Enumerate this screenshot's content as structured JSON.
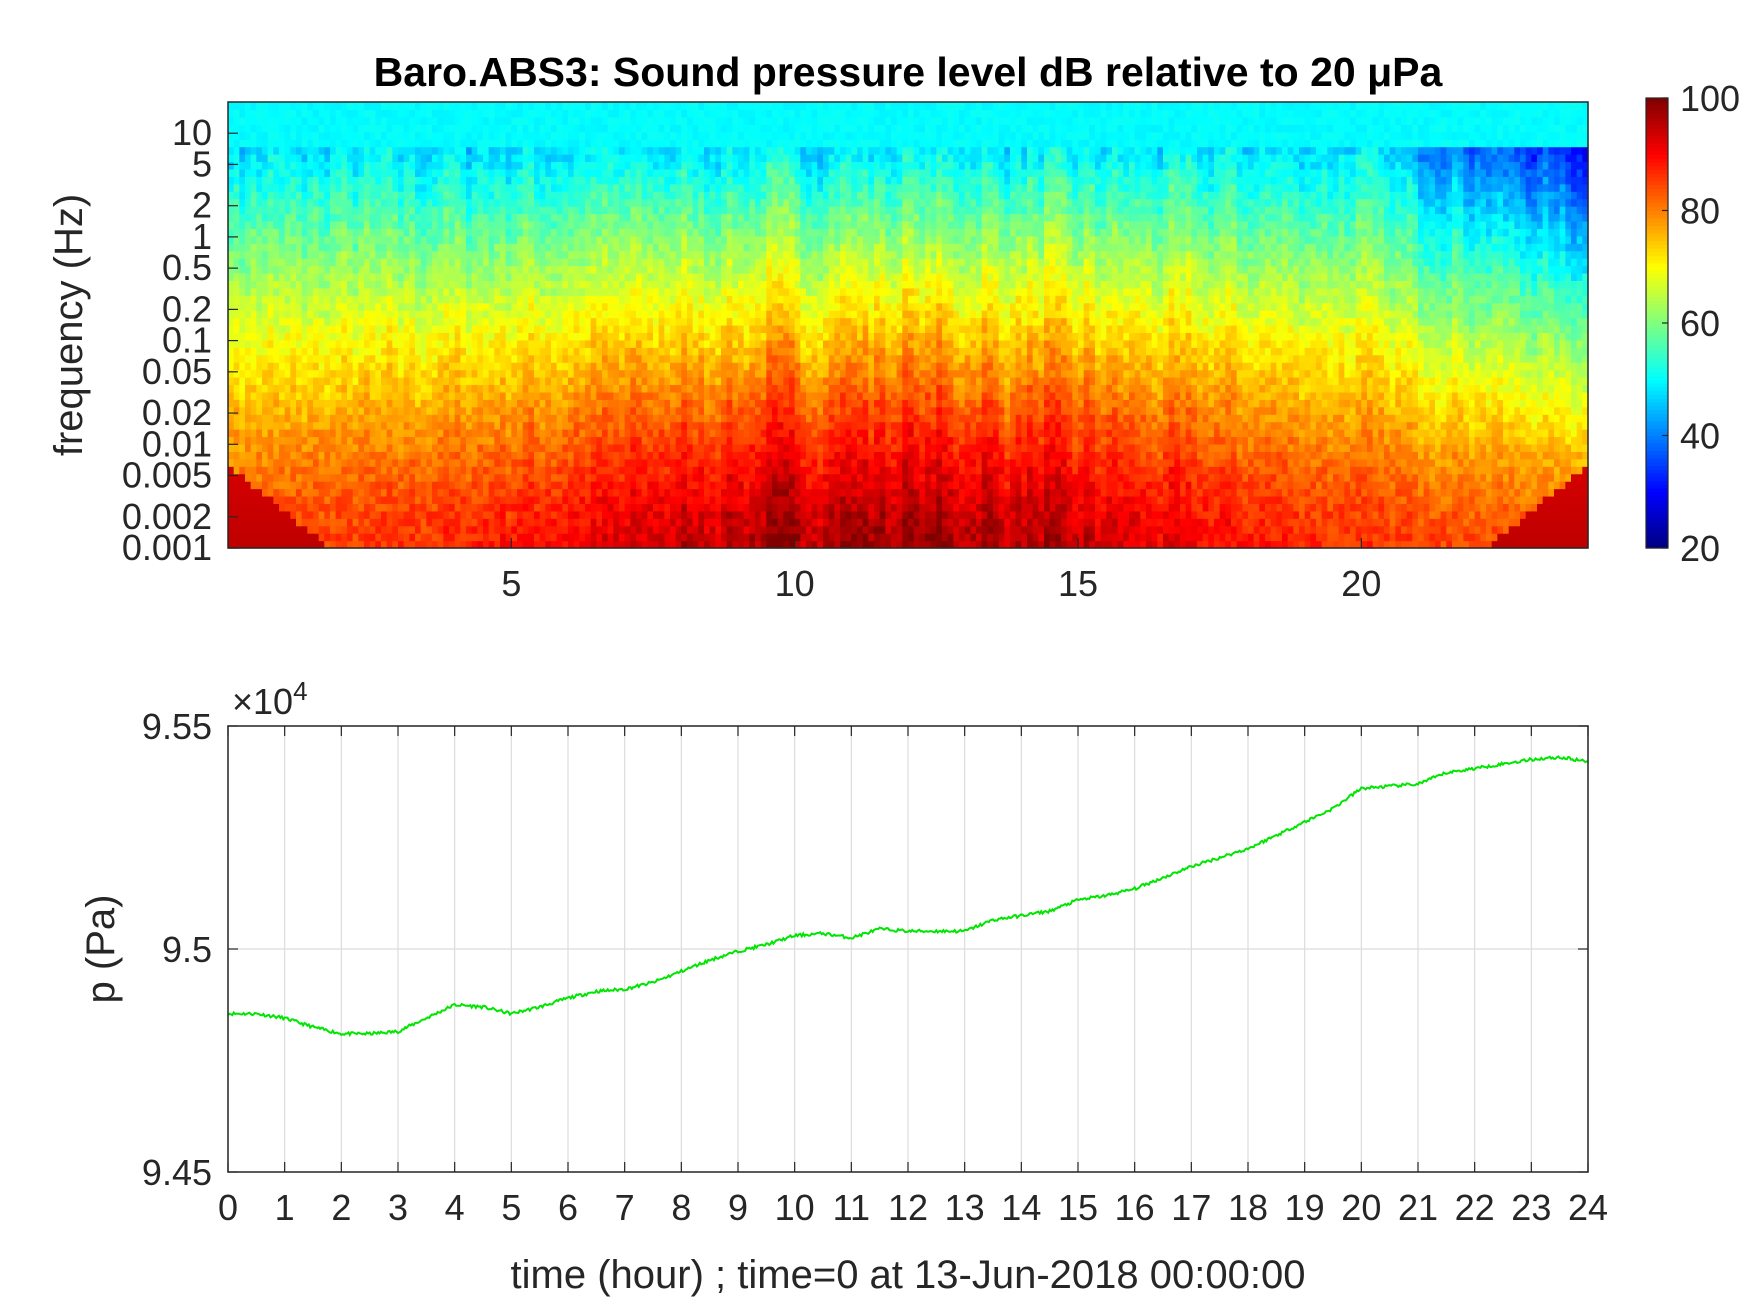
{
  "chart_data": [
    {
      "type": "heatmap",
      "title": "Baro.ABS3: Sound pressure level dB relative to 20 μPa",
      "xlabel": "",
      "ylabel": "frequency (Hz)",
      "x_range": [
        0,
        24
      ],
      "x_ticks": [
        "5",
        "10",
        "15",
        "20"
      ],
      "y_scale": "log",
      "y_range": [
        0.001,
        20
      ],
      "y_ticks": [
        "0.001",
        "0.002",
        "0.005",
        "0.01",
        "0.02",
        "0.05",
        "0.1",
        "0.2",
        "0.5",
        "1",
        "2",
        "5",
        "10"
      ],
      "colorbar": {
        "range": [
          20,
          100
        ],
        "ticks": [
          "20",
          "40",
          "60",
          "80",
          "100"
        ],
        "colormap": "jet"
      },
      "description_values": {
        "low_freq_level_db": 88,
        "high_freq_level_db": 50,
        "peak_activity_hours": [
          6,
          17
        ]
      }
    },
    {
      "type": "line",
      "title": "",
      "xlabel": "time (hour) ; time=0 at 13-Jun-2018 00:00:00",
      "ylabel": "p (Pa)",
      "y_multiplier": "×10",
      "y_multiplier_exp": "4",
      "x_range": [
        0,
        24
      ],
      "y_range": [
        9.45,
        9.55
      ],
      "x_ticks": [
        "0",
        "1",
        "2",
        "3",
        "4",
        "5",
        "6",
        "7",
        "8",
        "9",
        "10",
        "11",
        "12",
        "13",
        "14",
        "15",
        "16",
        "17",
        "18",
        "19",
        "20",
        "21",
        "22",
        "23",
        "24"
      ],
      "y_ticks": [
        "9.45",
        "9.5",
        "9.55"
      ],
      "grid": true,
      "line_color": "#00e600",
      "series": [
        {
          "x": [
            0,
            0.5,
            1,
            1.5,
            2,
            2.5,
            3,
            3.5,
            4,
            4.5,
            5,
            5.5,
            6,
            6.5,
            7,
            7.5,
            8,
            8.5,
            9,
            9.5,
            10,
            10.5,
            11,
            11.5,
            12,
            12.5,
            13,
            13.5,
            14,
            14.5,
            15,
            15.5,
            16,
            16.5,
            17,
            17.5,
            18,
            18.5,
            19,
            19.5,
            20,
            20.5,
            21,
            21.5,
            22,
            22.5,
            23,
            23.5,
            24
          ],
          "y": [
            9.4855,
            9.4855,
            9.4845,
            9.4825,
            9.481,
            9.481,
            9.4815,
            9.4845,
            9.4875,
            9.487,
            9.4855,
            9.487,
            9.489,
            9.4905,
            9.491,
            9.4925,
            9.495,
            9.4975,
            9.4995,
            9.501,
            9.503,
            9.5035,
            9.5025,
            9.5045,
            9.504,
            9.504,
            9.504,
            9.5065,
            9.5075,
            9.5085,
            9.511,
            9.512,
            9.5135,
            9.516,
            9.5185,
            9.5205,
            9.5225,
            9.5255,
            9.5285,
            9.5315,
            9.536,
            9.5365,
            9.537,
            9.5395,
            9.5405,
            9.5415,
            9.5425,
            9.543,
            9.542
          ]
        }
      ]
    }
  ]
}
